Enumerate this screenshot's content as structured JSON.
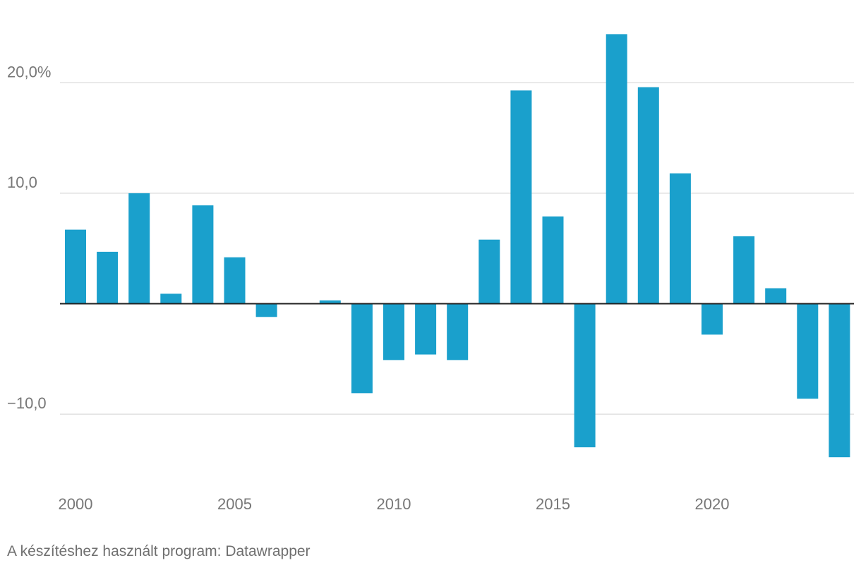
{
  "chart_data": {
    "type": "bar",
    "title": "",
    "xlabel": "",
    "ylabel": "",
    "categories": [
      2000,
      2001,
      2002,
      2003,
      2004,
      2005,
      2006,
      2007,
      2008,
      2009,
      2010,
      2011,
      2012,
      2013,
      2014,
      2015,
      2016,
      2017,
      2018,
      2019,
      2020,
      2021,
      2022,
      2023,
      2024
    ],
    "values": [
      6.7,
      4.7,
      10.0,
      0.9,
      8.9,
      4.2,
      -1.2,
      0.0,
      0.3,
      -8.1,
      -5.1,
      -4.6,
      -5.1,
      5.8,
      19.3,
      7.9,
      -13.0,
      24.4,
      19.6,
      11.8,
      -2.8,
      6.1,
      1.4,
      -8.6,
      -13.9
    ],
    "ylim": [
      -15.5,
      25.5
    ],
    "y_ticks": [
      {
        "value": 20,
        "label": "20,0%"
      },
      {
        "value": 10,
        "label": "10,0"
      },
      {
        "value": -10,
        "label": "−10,0"
      }
    ],
    "x_ticks": [
      {
        "value": 2000,
        "label": "2000"
      },
      {
        "value": 2005,
        "label": "2005"
      },
      {
        "value": 2010,
        "label": "2010"
      },
      {
        "value": 2015,
        "label": "2015"
      },
      {
        "value": 2020,
        "label": "2020"
      }
    ],
    "grid": true,
    "bar_color": "#1aa0cc"
  },
  "footer": {
    "credit": "A készítéshez használt program: Datawrapper"
  }
}
